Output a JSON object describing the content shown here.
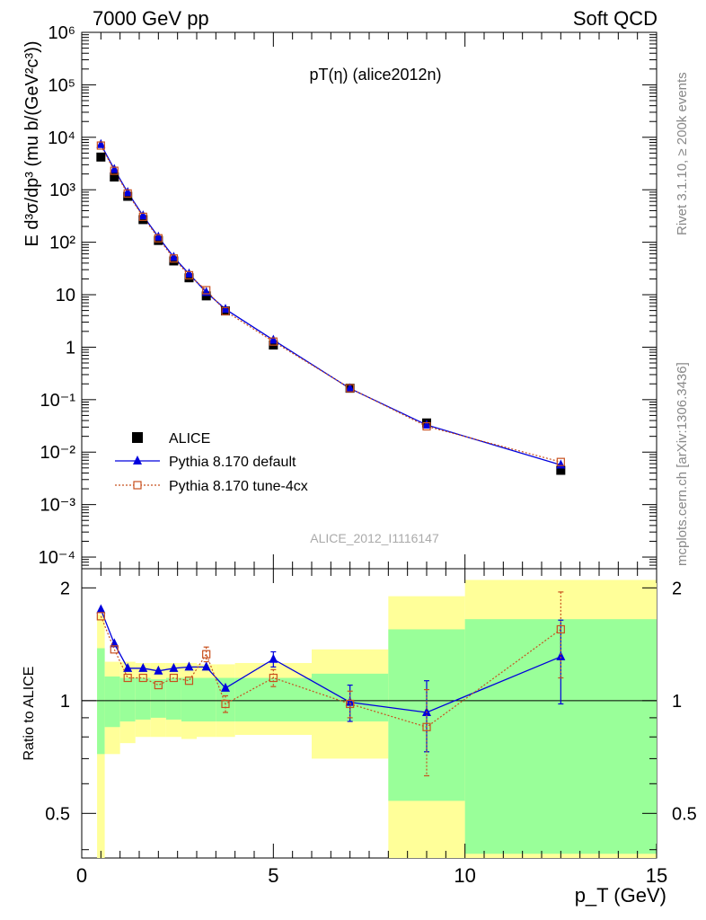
{
  "header": {
    "left": "7000 GeV pp",
    "right": "Soft QCD"
  },
  "plot_title": "pT(η) (alice2012n)",
  "analysis_id": "ALICE_2012_I1116147",
  "side_text": {
    "rivet": "Rivet 3.1.10, ≥ 200k events",
    "mcplots": "mcplots.cern.ch [arXiv:1306.3436]"
  },
  "axes": {
    "top_ylabel": "E d³σ/dp³ (mu b/(GeV²c³))",
    "ratio_ylabel": "Ratio to ALICE",
    "xlabel": "p_T (GeV)",
    "x_ticks": [
      "0",
      "5",
      "10",
      "15"
    ],
    "top_ticks": [
      "10⁻⁴",
      "10⁻³",
      "10⁻²",
      "10⁻¹",
      "1",
      "10",
      "10²",
      "10³",
      "10⁴",
      "10⁵",
      "10⁶"
    ],
    "ratio_ticks": [
      "0.5",
      "1",
      "2"
    ]
  },
  "legend": [
    {
      "key": "data",
      "label": "ALICE"
    },
    {
      "key": "def",
      "label": "Pythia 8.170 default"
    },
    {
      "key": "cx",
      "label": "Pythia 8.170 tune-4cx"
    }
  ],
  "colors": {
    "data": "#000000",
    "def": "#0000dd",
    "cx": "#c8501e",
    "band_outer": "#ffff99",
    "band_inner": "#99ff99"
  },
  "chart_data": {
    "type": "scatter",
    "xlim": [
      0,
      15
    ],
    "ylim_top": [
      6e-05,
      1000000
    ],
    "yscale_top": "log",
    "ylim_ratio": [
      0.38,
      2.25
    ],
    "yscale_ratio": "log",
    "x": [
      0.5,
      0.85,
      1.2,
      1.6,
      2.0,
      2.4,
      2.8,
      3.25,
      3.75,
      5.0,
      7.0,
      9.0,
      12.5
    ],
    "bins": [
      [
        0.4,
        0.6
      ],
      [
        0.6,
        1.0
      ],
      [
        1.0,
        1.4
      ],
      [
        1.4,
        1.8
      ],
      [
        1.8,
        2.2
      ],
      [
        2.2,
        2.6
      ],
      [
        2.6,
        3.0
      ],
      [
        3.0,
        3.5
      ],
      [
        3.5,
        4.0
      ],
      [
        4.0,
        6.0
      ],
      [
        6.0,
        8.0
      ],
      [
        8.0,
        10.0
      ],
      [
        10.0,
        15.0
      ]
    ],
    "series": [
      {
        "name": "ALICE",
        "key": "data",
        "values": [
          4200,
          1750,
          750,
          270,
          108,
          44,
          21,
          9.5,
          4.9,
          1.1,
          0.165,
          0.036,
          0.0045
        ]
      },
      {
        "name": "Pythia 8.170 default",
        "key": "def",
        "values": [
          7300,
          2450,
          890,
          320,
          126,
          52,
          25,
          11.1,
          5.3,
          1.37,
          0.163,
          0.033,
          0.0057
        ]
      },
      {
        "name": "Pythia 8.170 tune-4cx",
        "key": "cx",
        "values": [
          6950,
          2300,
          850,
          305,
          119,
          49,
          23.5,
          12.2,
          4.85,
          1.28,
          0.165,
          0.031,
          0.0065
        ]
      }
    ],
    "ratio_series": [
      {
        "key": "def",
        "values": [
          1.75,
          1.42,
          1.22,
          1.22,
          1.2,
          1.22,
          1.23,
          1.23,
          1.08,
          1.29,
          0.99,
          0.93,
          1.31
        ],
        "err": [
          0,
          0,
          0,
          0,
          0,
          0,
          0,
          0,
          0,
          0.06,
          0.11,
          0.2,
          0.33
        ]
      },
      {
        "key": "cx",
        "values": [
          1.68,
          1.37,
          1.15,
          1.15,
          1.1,
          1.15,
          1.13,
          1.33,
          0.98,
          1.15,
          0.98,
          0.85,
          1.55
        ],
        "err": [
          0,
          0,
          0,
          0,
          0,
          0,
          0,
          0.06,
          0.05,
          0.06,
          0.08,
          0.22,
          0.4
        ]
      }
    ],
    "bands": {
      "outer_low": [
        0.38,
        0.72,
        0.77,
        0.8,
        0.8,
        0.8,
        0.79,
        0.8,
        0.8,
        0.81,
        0.7,
        0.38,
        0.38
      ],
      "outer_high": [
        1.7,
        1.27,
        1.27,
        1.26,
        1.26,
        1.26,
        1.26,
        1.25,
        1.25,
        1.26,
        1.37,
        1.9,
        2.1
      ],
      "inner_low": [
        0.72,
        0.85,
        0.88,
        0.89,
        0.9,
        0.89,
        0.88,
        0.88,
        0.88,
        0.88,
        0.88,
        0.54,
        0.39
      ],
      "inner_high": [
        1.38,
        1.16,
        1.15,
        1.15,
        1.14,
        1.15,
        1.15,
        1.15,
        1.15,
        1.15,
        1.18,
        1.55,
        1.65
      ]
    }
  }
}
